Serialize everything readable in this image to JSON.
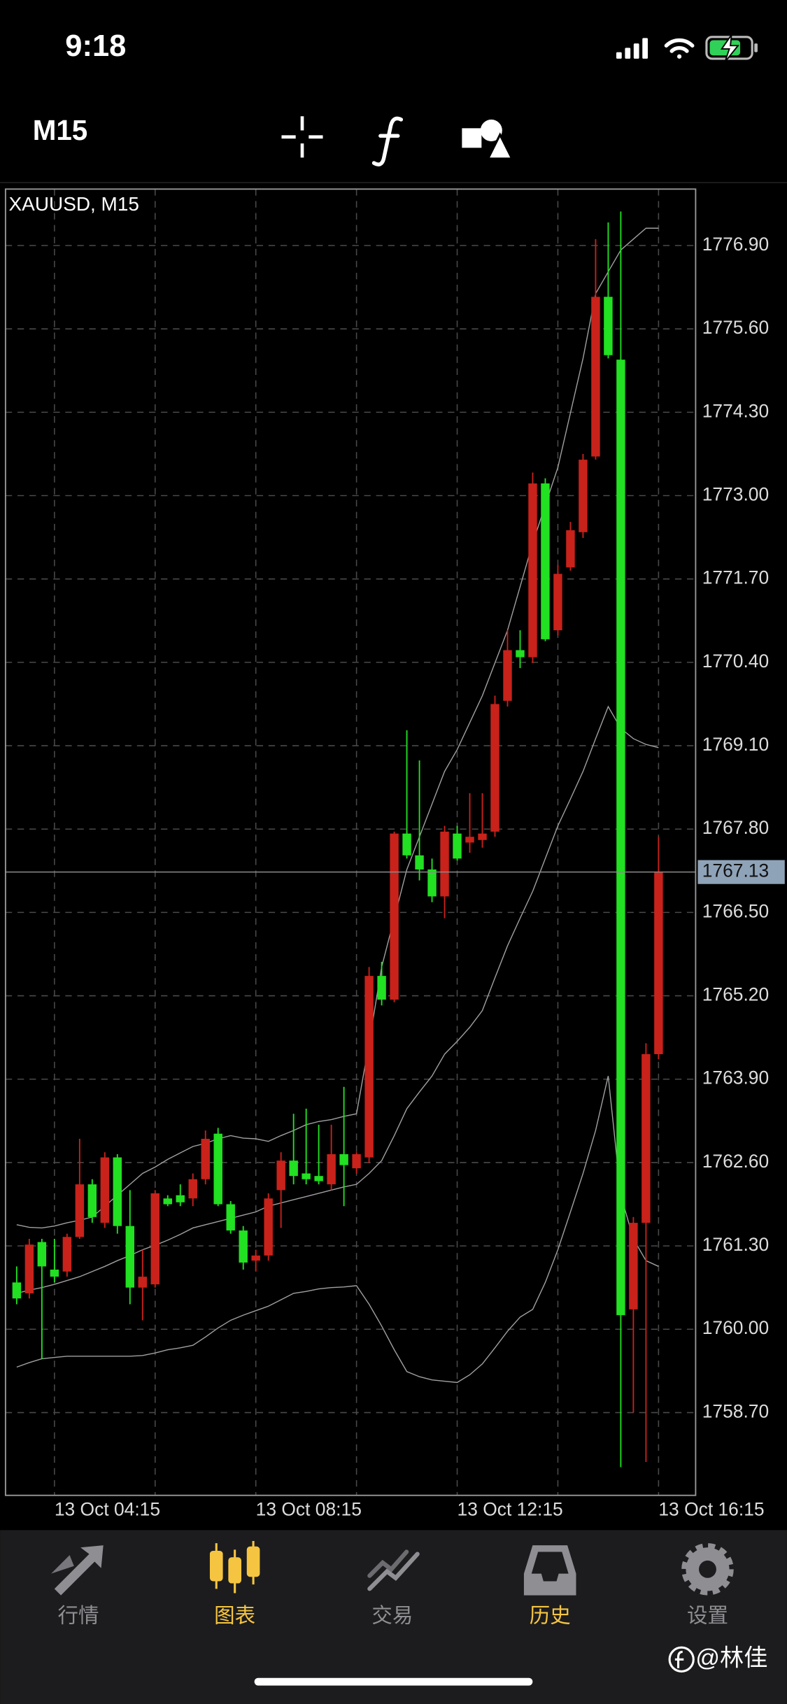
{
  "status_bar": {
    "time": "9:18"
  },
  "toolbar": {
    "timeframe": "M15"
  },
  "chart_data": {
    "type": "candlestick",
    "title": "XAUUSD, M15",
    "categories": [
      null,
      null,
      null,
      "13 Oct 04:15",
      null,
      null,
      null,
      null,
      null,
      null,
      null,
      null,
      null,
      null,
      null,
      null,
      null,
      null,
      null,
      "13 Oct 08:15",
      null,
      null,
      null,
      null,
      null,
      null,
      null,
      null,
      null,
      null,
      null,
      null,
      null,
      null,
      null,
      "13 Oct 12:15",
      null,
      null,
      null,
      null,
      null,
      null,
      null,
      null,
      null,
      null,
      null,
      null,
      null,
      null,
      null,
      "13 Oct 16:15"
    ],
    "open": [
      1760.73,
      1760.56,
      1761.36,
      1760.93,
      1760.9,
      1761.44,
      1762.26,
      1761.66,
      1762.68,
      1761.61,
      1760.65,
      1760.7,
      1762.04,
      1762.09,
      1762.04,
      1762.34,
      1763.05,
      1761.95,
      1761.54,
      1761.07,
      1761.15,
      1762.17,
      1762.63,
      1762.43,
      1762.39,
      1762.26,
      1762.73,
      1762.51,
      1762.68,
      1765.51,
      1765.14,
      1767.73,
      1767.39,
      1767.17,
      1766.75,
      1767.73,
      1767.59,
      1767.63,
      1767.76,
      1769.8,
      1770.59,
      1770.48,
      1773.19,
      1770.9,
      1771.88,
      1772.43,
      1773.61,
      1776.1,
      1775.12,
      1760.31,
      1761.66,
      1764.29
    ],
    "high": [
      1760.98,
      1761.41,
      1761.41,
      1761.41,
      1761.49,
      1762.97,
      1762.34,
      1762.76,
      1762.73,
      1762.17,
      1761.24,
      1762.17,
      1762.09,
      1762.26,
      1762.43,
      1763.1,
      1763.14,
      1762.0,
      1761.61,
      1761.24,
      1762.12,
      1762.76,
      1763.36,
      1763.44,
      1763.19,
      1763.19,
      1763.78,
      1762.76,
      1765.65,
      1765.73,
      1767.76,
      1769.34,
      1768.87,
      1767.34,
      1767.85,
      1767.85,
      1768.36,
      1768.36,
      1769.88,
      1770.9,
      1770.9,
      1773.36,
      1773.27,
      1771.92,
      1772.59,
      1773.65,
      1777.0,
      1777.26,
      1777.43,
      1761.75,
      1764.46,
      1767.68
    ],
    "low": [
      1760.39,
      1760.48,
      1759.54,
      1760.73,
      1760.82,
      1761.41,
      1761.66,
      1761.58,
      1761.49,
      1760.39,
      1760.14,
      1760.65,
      1761.92,
      1761.92,
      1761.92,
      1762.26,
      1761.92,
      1761.49,
      1760.93,
      1760.9,
      1761.07,
      1761.58,
      1762.26,
      1762.26,
      1762.26,
      1762.17,
      1761.92,
      1762.43,
      1762.59,
      1765.05,
      1765.1,
      1767.34,
      1767.0,
      1766.66,
      1766.41,
      1767.31,
      1767.43,
      1767.51,
      1767.68,
      1769.71,
      1770.31,
      1770.39,
      1770.73,
      1770.82,
      1771.83,
      1772.34,
      1773.56,
      1775.14,
      1757.85,
      1758.7,
      1757.93,
      1764.21
    ],
    "close": [
      1760.48,
      1761.32,
      1760.98,
      1760.82,
      1761.44,
      1762.26,
      1761.75,
      1762.68,
      1761.61,
      1760.65,
      1760.82,
      1762.12,
      1761.95,
      1761.98,
      1762.34,
      1762.97,
      1761.95,
      1761.54,
      1761.04,
      1761.15,
      1762.04,
      1762.63,
      1762.39,
      1762.34,
      1762.31,
      1762.73,
      1762.56,
      1762.73,
      1765.51,
      1765.14,
      1767.73,
      1767.39,
      1767.17,
      1766.75,
      1767.76,
      1767.34,
      1767.68,
      1767.73,
      1769.75,
      1770.59,
      1770.48,
      1773.19,
      1770.76,
      1771.78,
      1772.46,
      1773.56,
      1776.1,
      1775.19,
      1760.22,
      1761.66,
      1764.29,
      1767.13
    ],
    "overlays": [
      [
        1761.63,
        1761.59,
        1761.58,
        1761.61,
        1761.66,
        1761.7,
        1761.75,
        1761.92,
        1762.09,
        1762.26,
        1762.43,
        1762.53,
        1762.65,
        1762.75,
        1762.85,
        1762.9,
        1762.97,
        1763.02,
        1762.98,
        1762.97,
        1762.93,
        1763.02,
        1763.1,
        1763.19,
        1763.24,
        1763.27,
        1763.32,
        1763.36,
        1764.46,
        1765.65,
        1766.41,
        1767.17,
        1767.68,
        1768.19,
        1768.7,
        1769.04,
        1769.46,
        1769.88,
        1770.39,
        1770.9,
        1771.58,
        1772.26,
        1772.85,
        1773.44,
        1774.29,
        1775.14,
        1776.15,
        1776.49,
        1776.83,
        1777.0,
        1777.17,
        1777.17
      ],
      [
        1760.56,
        1760.61,
        1760.65,
        1760.7,
        1760.76,
        1760.82,
        1760.9,
        1760.98,
        1761.07,
        1761.15,
        1761.24,
        1761.31,
        1761.39,
        1761.48,
        1761.58,
        1761.63,
        1761.68,
        1761.73,
        1761.78,
        1761.83,
        1761.92,
        1761.97,
        1762.02,
        1762.07,
        1762.12,
        1762.17,
        1762.22,
        1762.26,
        1762.43,
        1762.63,
        1763.02,
        1763.44,
        1763.7,
        1763.95,
        1764.29,
        1764.49,
        1764.71,
        1764.97,
        1765.48,
        1765.98,
        1766.41,
        1766.83,
        1767.34,
        1767.85,
        1768.27,
        1768.7,
        1769.21,
        1769.71,
        1769.37,
        1769.21,
        1769.12,
        1769.07
      ],
      [
        1759.41,
        1759.48,
        1759.54,
        1759.56,
        1759.58,
        1759.58,
        1759.58,
        1759.58,
        1759.58,
        1759.58,
        1759.59,
        1759.63,
        1759.68,
        1759.71,
        1759.75,
        1759.88,
        1760.02,
        1760.14,
        1760.22,
        1760.29,
        1760.36,
        1760.46,
        1760.56,
        1760.59,
        1760.63,
        1760.65,
        1760.66,
        1760.68,
        1760.39,
        1760.05,
        1759.68,
        1759.34,
        1759.26,
        1759.21,
        1759.19,
        1759.17,
        1759.29,
        1759.46,
        1759.71,
        1759.97,
        1760.19,
        1760.31,
        1760.73,
        1761.24,
        1761.83,
        1762.43,
        1763.1,
        1763.95,
        1762.09,
        1761.41,
        1761.07,
        1760.98
      ]
    ],
    "overlay_color": "#a0a0a0",
    "up_color": "#c8221b",
    "down_color": "#22e022",
    "current_price": 1767.13,
    "ylim": [
      1757.41,
      1777.78
    ],
    "yticks": [
      {
        "value": 1776.9,
        "label": "1776.90"
      },
      {
        "value": 1775.6,
        "label": "1775.60"
      },
      {
        "value": 1774.3,
        "label": "1774.30"
      },
      {
        "value": 1773,
        "label": "1773.00"
      },
      {
        "value": 1771.7,
        "label": "1771.70"
      },
      {
        "value": 1770.4,
        "label": "1770.40"
      },
      {
        "value": 1769.1,
        "label": "1769.10"
      },
      {
        "value": 1767.8,
        "label": "1767.80"
      },
      {
        "value": 1766.5,
        "label": "1766.50"
      },
      {
        "value": 1765.2,
        "label": "1765.20"
      },
      {
        "value": 1763.9,
        "label": "1763.90"
      },
      {
        "value": 1762.6,
        "label": "1762.60"
      },
      {
        "value": 1761.3,
        "label": "1761.30"
      },
      {
        "value": 1760,
        "label": "1760.00"
      },
      {
        "value": 1758.7,
        "label": "1758.70"
      }
    ],
    "grid": true
  },
  "tabs": [
    "行情",
    "图表",
    "交易",
    "历史",
    "设置"
  ],
  "watermark": "@林佳"
}
